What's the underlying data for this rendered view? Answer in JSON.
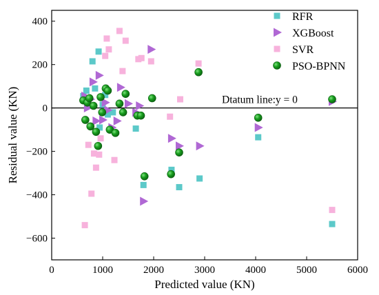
{
  "chart_data": {
    "type": "scatter",
    "title": "",
    "xlabel": "Predicted value (KN)",
    "ylabel": "Residual value (KN)",
    "xlim": [
      0,
      6000
    ],
    "ylim": [
      -700,
      450
    ],
    "xticks": [
      0,
      1000,
      2000,
      3000,
      4000,
      5000,
      6000
    ],
    "yticks": [
      -600,
      -400,
      -200,
      0,
      200,
      400
    ],
    "reference_line": {
      "y": 0,
      "label": "Dtatum line:y = 0"
    },
    "legend_position": "top-right",
    "grid": false,
    "series": [
      {
        "name": "RFR",
        "marker": "square",
        "color": "#5cc9c9",
        "points": [
          [
            620,
            55
          ],
          [
            680,
            80
          ],
          [
            700,
            30
          ],
          [
            800,
            215
          ],
          [
            850,
            90
          ],
          [
            920,
            260
          ],
          [
            940,
            -90
          ],
          [
            1000,
            15
          ],
          [
            1050,
            60
          ],
          [
            1100,
            -30
          ],
          [
            1200,
            -20
          ],
          [
            1650,
            -95
          ],
          [
            1800,
            -355
          ],
          [
            2350,
            -285
          ],
          [
            2500,
            -365
          ],
          [
            2900,
            -325
          ],
          [
            4050,
            -135
          ],
          [
            5500,
            -535
          ]
        ]
      },
      {
        "name": "XGBoost",
        "marker": "triangle-right",
        "color": "#b068d4",
        "points": [
          [
            650,
            55
          ],
          [
            700,
            0
          ],
          [
            760,
            40
          ],
          [
            810,
            120
          ],
          [
            870,
            -60
          ],
          [
            930,
            150
          ],
          [
            1000,
            -55
          ],
          [
            1050,
            25
          ],
          [
            1100,
            -10
          ],
          [
            1180,
            -90
          ],
          [
            1280,
            -60
          ],
          [
            1350,
            95
          ],
          [
            1500,
            20
          ],
          [
            1650,
            -20
          ],
          [
            1720,
            10
          ],
          [
            1800,
            -430
          ],
          [
            1950,
            270
          ],
          [
            2350,
            -140
          ],
          [
            2500,
            -175
          ],
          [
            2900,
            -175
          ],
          [
            4050,
            -90
          ],
          [
            5500,
            30
          ]
        ]
      },
      {
        "name": "SVR",
        "marker": "square",
        "color": "#f7b2dc",
        "points": [
          [
            650,
            -540
          ],
          [
            720,
            -170
          ],
          [
            780,
            -395
          ],
          [
            830,
            -210
          ],
          [
            870,
            -275
          ],
          [
            930,
            -215
          ],
          [
            960,
            -140
          ],
          [
            1050,
            240
          ],
          [
            1080,
            320
          ],
          [
            1120,
            270
          ],
          [
            1230,
            -240
          ],
          [
            1330,
            355
          ],
          [
            1390,
            170
          ],
          [
            1450,
            310
          ],
          [
            1700,
            225
          ],
          [
            1760,
            230
          ],
          [
            1950,
            215
          ],
          [
            2320,
            -40
          ],
          [
            2520,
            40
          ],
          [
            2880,
            205
          ],
          [
            5500,
            -470
          ]
        ]
      },
      {
        "name": "PSO-BPNN",
        "marker": "circle",
        "color": "#17901d",
        "points": [
          [
            620,
            35
          ],
          [
            660,
            -55
          ],
          [
            700,
            25
          ],
          [
            740,
            45
          ],
          [
            760,
            -85
          ],
          [
            820,
            10
          ],
          [
            870,
            -110
          ],
          [
            910,
            -175
          ],
          [
            960,
            50
          ],
          [
            990,
            -20
          ],
          [
            1060,
            90
          ],
          [
            1100,
            80
          ],
          [
            1140,
            -100
          ],
          [
            1250,
            -115
          ],
          [
            1330,
            20
          ],
          [
            1400,
            -20
          ],
          [
            1450,
            65
          ],
          [
            1680,
            -35
          ],
          [
            1750,
            -35
          ],
          [
            1820,
            -315
          ],
          [
            1970,
            45
          ],
          [
            2340,
            -305
          ],
          [
            2500,
            -205
          ],
          [
            2880,
            165
          ],
          [
            4050,
            -45
          ],
          [
            5500,
            40
          ]
        ]
      }
    ]
  }
}
